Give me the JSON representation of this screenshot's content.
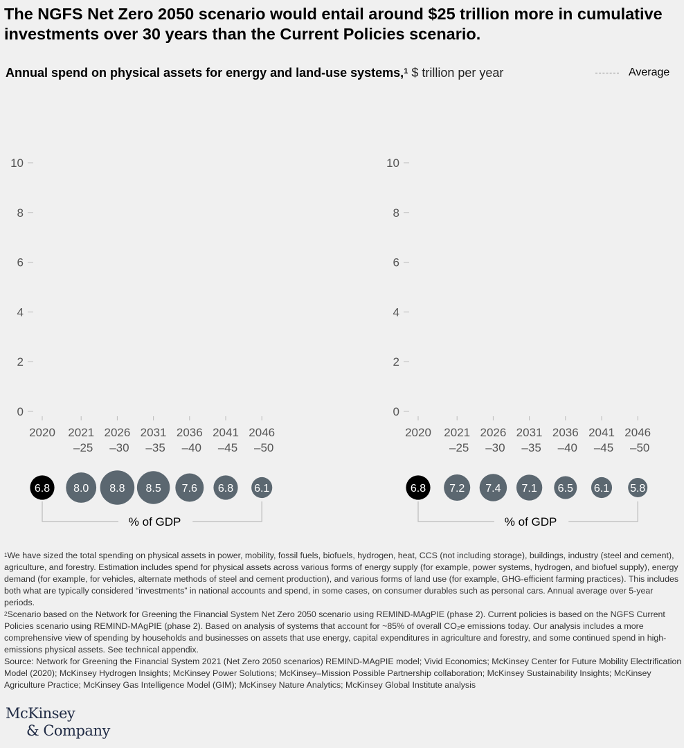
{
  "headline": "The NGFS Net Zero 2050 scenario would entail around $25 trillion more in cumulative investments over 30 years than the Current Policies scenario.",
  "subtitle": {
    "bold": "Annual spend on physical assets for energy and land-use systems,",
    "sup": "1",
    "unit": "$ trillion per year"
  },
  "legend": {
    "average_label": "Average"
  },
  "gdp_label": "% of GDP",
  "chart_data": [
    {
      "type": "bar",
      "categories": [
        "2020",
        "2021\n–25",
        "2026\n–30",
        "2031\n–35",
        "2036\n–40",
        "2041\n–45",
        "2046\n–50"
      ],
      "ylim": [
        0,
        10
      ],
      "yticks": [
        0,
        2,
        4,
        6,
        8,
        10
      ],
      "series": [],
      "pct_gdp": [
        6.8,
        8.0,
        8.8,
        8.5,
        7.6,
        6.8,
        6.1
      ],
      "pct_gdp_labels": [
        "6.8",
        "8.0",
        "8.8",
        "8.5",
        "7.6",
        "6.8",
        "6.1"
      ]
    },
    {
      "type": "bar",
      "categories": [
        "2020",
        "2021\n–25",
        "2026\n–30",
        "2031\n–35",
        "2036\n–40",
        "2041\n–45",
        "2046\n–50"
      ],
      "ylim": [
        0,
        10
      ],
      "yticks": [
        0,
        2,
        4,
        6,
        8,
        10
      ],
      "series": [],
      "pct_gdp": [
        6.8,
        7.2,
        7.4,
        7.1,
        6.5,
        6.1,
        5.8
      ],
      "pct_gdp_labels": [
        "6.8",
        "7.2",
        "7.4",
        "7.1",
        "6.5",
        "6.1",
        "5.8"
      ]
    }
  ],
  "colors": {
    "circle_first": "#000000",
    "circle_other": "#5b6770",
    "axis": "#bbbbbb",
    "tick_text": "#555555"
  },
  "footnotes": {
    "note1_sup": "1",
    "note1": "We have sized the total spending on physical assets in power, mobility, fossil fuels, biofuels, hydrogen, heat, CCS (not including storage), buildings, industry (steel and cement), agriculture, and forestry. Estimation includes spend for physical assets across various forms of energy supply (for example, power systems, hydrogen, and biofuel supply), energy demand (for example, for vehicles, alternate methods of steel and cement production), and various forms of land use (for example, GHG-efficient farming practices). This includes both what are typically considered “investments” in national accounts and spend, in some cases, on consumer durables such as personal cars. Annual average over 5-year periods.",
    "note2_sup": "2",
    "note2": "Scenario based on the Network for Greening the Financial System Net Zero 2050 scenario using REMIND-MAgPIE (phase 2). Current policies is based on the NGFS Current Policies scenario using REMIND-MAgPIE (phase 2). Based on analysis of systems that account for ~85% of overall CO₂e emissions today. Our analysis includes a more comprehensive view of spending by households and businesses on assets that use energy, capital expenditures in agriculture and forestry, and some continued spend in high-emissions physical assets. See technical appendix.",
    "source": "Source: Network for Greening the Financial System 2021 (Net Zero 2050 scenarios) REMIND-MAgPIE model; Vivid Economics; McKinsey Center for Future Mobility Electrification Model (2020); McKinsey Hydrogen Insights; McKinsey Power Solutions; McKinsey–Mission Possible Partnership collaboration; McKinsey Sustainability Insights; McKinsey Agriculture Practice; McKinsey Gas Intelligence Model (GIM); McKinsey Nature Analytics; McKinsey Global Institute analysis"
  },
  "logo": {
    "line1": "McKinsey",
    "line2": "& Company"
  }
}
